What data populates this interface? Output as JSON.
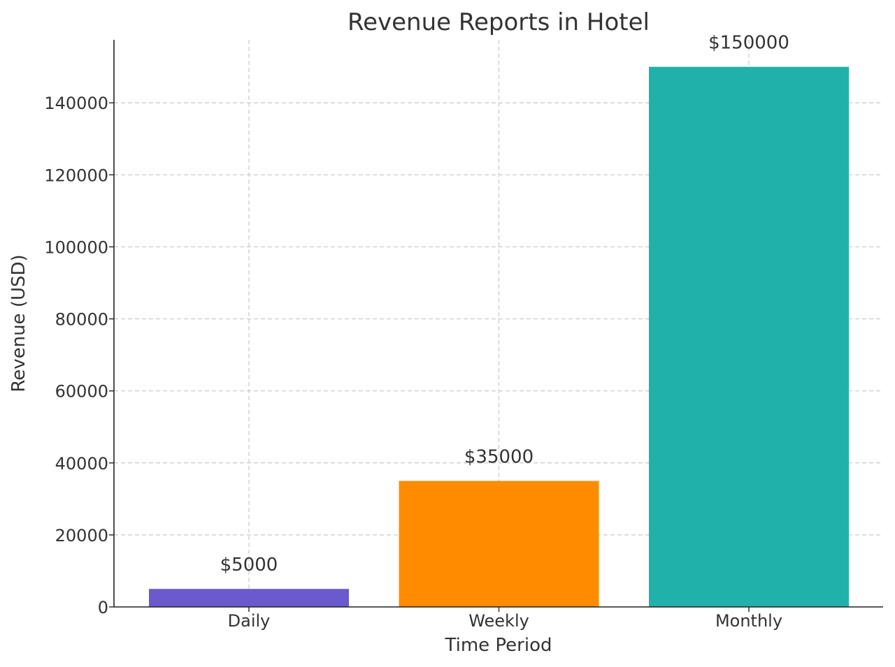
{
  "chart_data": {
    "type": "bar",
    "title": "Revenue Reports in Hotel",
    "xlabel": "Time Period",
    "ylabel": "Revenue (USD)",
    "categories": [
      "Daily",
      "Weekly",
      "Monthly"
    ],
    "values": [
      5000,
      35000,
      150000
    ],
    "data_labels": [
      "$5000",
      "$35000",
      "$150000"
    ],
    "colors": [
      "#6a5acd",
      "#ff8c00",
      "#20b2aa"
    ],
    "ylim": [
      0,
      157500
    ],
    "yticks": [
      0,
      20000,
      40000,
      60000,
      80000,
      100000,
      120000,
      140000
    ],
    "ytick_labels": [
      "0",
      "20000",
      "40000",
      "60000",
      "80000",
      "100000",
      "120000",
      "140000"
    ],
    "grid": true,
    "legend": null
  }
}
